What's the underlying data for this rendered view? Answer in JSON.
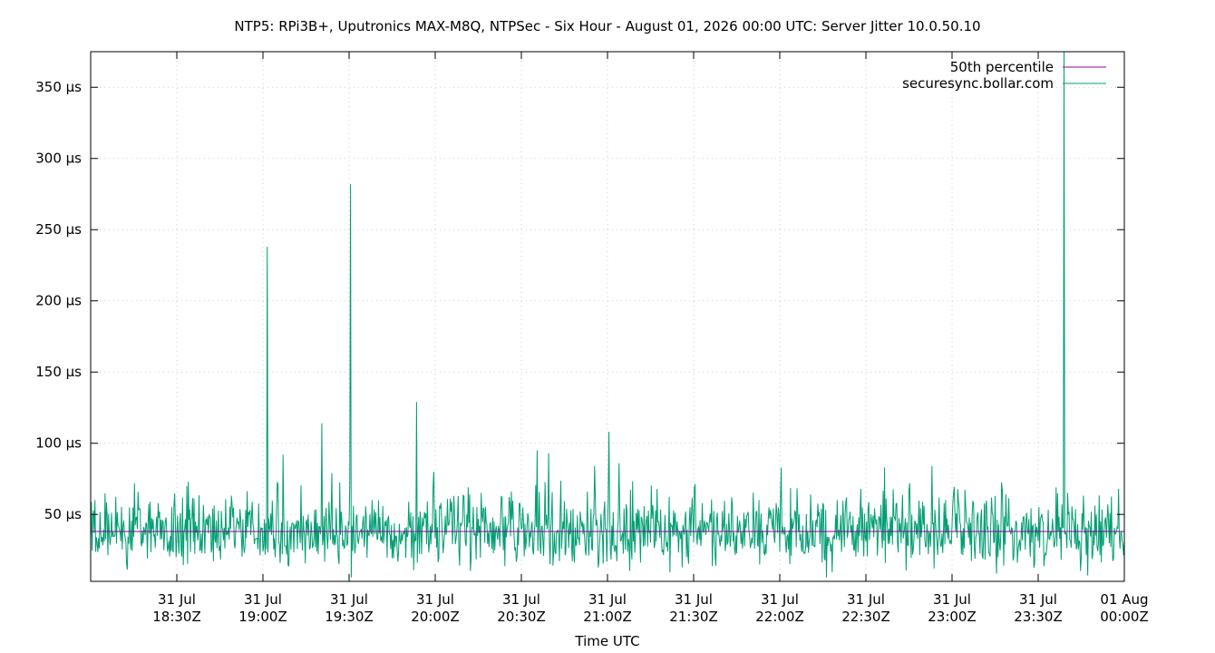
{
  "chart_data": {
    "type": "line",
    "title": "NTP5: RPi3B+, Uputronics MAX-M8Q, NTPSec - Six Hour - August 01, 2026 00:00 UTC: Server Jitter 10.0.50.10",
    "xlabel": "Time UTC",
    "ylabel": "",
    "x_range_minutes": [
      0,
      360
    ],
    "ylim": [
      3,
      375
    ],
    "y_ticks": [
      {
        "value": 50,
        "label": "50 µs"
      },
      {
        "value": 100,
        "label": "100 µs"
      },
      {
        "value": 150,
        "label": "150 µs"
      },
      {
        "value": 200,
        "label": "200 µs"
      },
      {
        "value": 250,
        "label": "250 µs"
      },
      {
        "value": 300,
        "label": "300 µs"
      },
      {
        "value": 350,
        "label": "350 µs"
      }
    ],
    "x_ticks": [
      {
        "minute": 30,
        "line1": "31 Jul",
        "line2": "18:30Z"
      },
      {
        "minute": 60,
        "line1": "31 Jul",
        "line2": "19:00Z"
      },
      {
        "minute": 90,
        "line1": "31 Jul",
        "line2": "19:30Z"
      },
      {
        "minute": 120,
        "line1": "31 Jul",
        "line2": "20:00Z"
      },
      {
        "minute": 150,
        "line1": "31 Jul",
        "line2": "20:30Z"
      },
      {
        "minute": 180,
        "line1": "31 Jul",
        "line2": "21:00Z"
      },
      {
        "minute": 210,
        "line1": "31 Jul",
        "line2": "21:30Z"
      },
      {
        "minute": 240,
        "line1": "31 Jul",
        "line2": "22:00Z"
      },
      {
        "minute": 270,
        "line1": "31 Jul",
        "line2": "22:30Z"
      },
      {
        "minute": 300,
        "line1": "31 Jul",
        "line2": "23:00Z"
      },
      {
        "minute": 330,
        "line1": "31 Jul",
        "line2": "23:30Z"
      },
      {
        "minute": 360,
        "line1": "01 Aug",
        "line2": "00:00Z"
      }
    ],
    "grid": true,
    "legend_position": "top-right",
    "series": [
      {
        "name": "50th percentile",
        "color": "#94009b",
        "constant": 38
      },
      {
        "name": "securesync.bollar.com",
        "color": "#009e73",
        "baseline": 38,
        "noise_range": [
          8,
          68
        ],
        "spikes": [
          {
            "minute": 61.5,
            "value": 238
          },
          {
            "minute": 67,
            "value": 92
          },
          {
            "minute": 80.5,
            "value": 114
          },
          {
            "minute": 84,
            "value": 79
          },
          {
            "minute": 90.5,
            "value": 282
          },
          {
            "minute": 113.5,
            "value": 129
          },
          {
            "minute": 119.5,
            "value": 80
          },
          {
            "minute": 155.5,
            "value": 95
          },
          {
            "minute": 159.5,
            "value": 93
          },
          {
            "minute": 175.5,
            "value": 84
          },
          {
            "minute": 180.5,
            "value": 108
          },
          {
            "minute": 184,
            "value": 86
          },
          {
            "minute": 240.5,
            "value": 83
          },
          {
            "minute": 276.5,
            "value": 83
          },
          {
            "minute": 293,
            "value": 84
          },
          {
            "minute": 339,
            "value": 375
          }
        ]
      }
    ]
  }
}
